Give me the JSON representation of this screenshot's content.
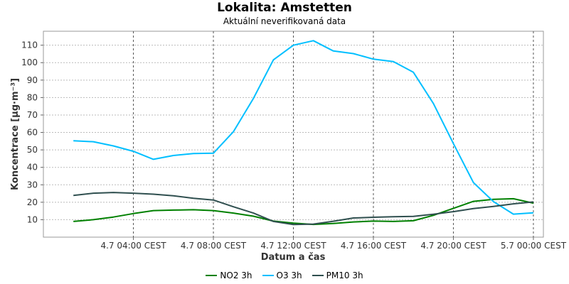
{
  "chart_data": {
    "type": "line",
    "title": "Lokalita: Amstetten",
    "subtitle": "Aktuální neverifikovaná data",
    "xlabel": "Datum a čas",
    "ylabel": "Koncentrace [µg·m⁻³]",
    "x_ticks": [
      {
        "label": "4.7 04:00 CEST",
        "hour": 4
      },
      {
        "label": "4.7 08:00 CEST",
        "hour": 8
      },
      {
        "label": "4.7 12:00 CEST",
        "hour": 12
      },
      {
        "label": "4.7 16:00 CEST",
        "hour": 16
      },
      {
        "label": "4.7 20:00 CEST",
        "hour": 20
      },
      {
        "label": "5.7 00:00 CEST",
        "hour": 24
      }
    ],
    "xlim": [
      -0.5,
      24.5
    ],
    "ylim": [
      0,
      118
    ],
    "y_ticks": [
      10,
      20,
      30,
      40,
      50,
      60,
      70,
      80,
      90,
      100,
      110
    ],
    "grid": true,
    "legend_position": "bottom",
    "x": [
      1,
      2,
      3,
      4,
      5,
      6,
      7,
      8,
      9,
      10,
      11,
      12,
      13,
      14,
      15,
      16,
      17,
      18,
      19,
      20,
      21,
      22,
      23,
      24
    ],
    "series": [
      {
        "name": "NO2 3h",
        "color": "#008000",
        "values": [
          9,
          10,
          11.5,
          13.5,
          15.2,
          15.5,
          15.7,
          15.2,
          13.8,
          12,
          9.2,
          8,
          7.3,
          7.8,
          8.7,
          9.2,
          9,
          9.4,
          12.5,
          16.5,
          20.5,
          21.7,
          22,
          19.5
        ]
      },
      {
        "name": "O3 3h",
        "color": "#00bfff",
        "values": [
          55.2,
          54.7,
          52.3,
          49.2,
          44.6,
          46.8,
          47.9,
          48.1,
          60.4,
          79.5,
          101.6,
          110,
          112.6,
          106.7,
          105.2,
          102,
          100.6,
          94.5,
          76.6,
          53.6,
          31.3,
          20.4,
          13.2,
          13.9
        ]
      },
      {
        "name": "PM10 3h",
        "color": "#2f4f4f",
        "values": [
          23.9,
          25.2,
          25.6,
          25.2,
          24.6,
          23.7,
          22.3,
          21.3,
          17.4,
          13.8,
          9,
          7.2,
          7.5,
          9.1,
          11,
          11.4,
          11.7,
          11.9,
          13.1,
          14.6,
          16.4,
          17.6,
          19.1,
          20.2
        ]
      }
    ]
  }
}
